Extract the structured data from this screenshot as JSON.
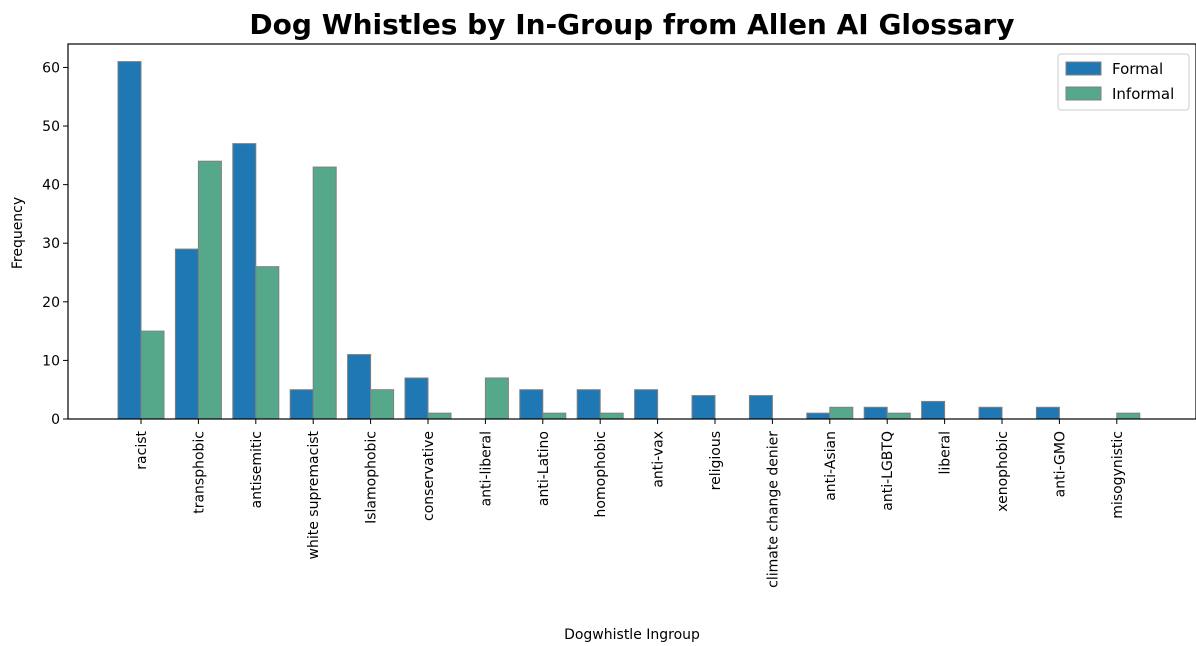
{
  "chart_data": {
    "type": "bar",
    "title": "Dog Whistles by In-Group from Allen AI Glossary",
    "xlabel": "Dogwhistle Ingroup",
    "ylabel": "Frequency",
    "ylim": [
      0,
      64
    ],
    "yticks": [
      0,
      10,
      20,
      30,
      40,
      50,
      60
    ],
    "grid": false,
    "legend_position": "top-right",
    "categories": [
      "racist",
      "transphobic",
      "antisemitic",
      "white supremacist",
      "Islamophobic",
      "conservative",
      "anti-liberal",
      "anti-Latino",
      "homophobic",
      "anti-vax",
      "religious",
      "climate change denier",
      "anti-Asian",
      "anti-LGBTQ",
      "liberal",
      "xenophobic",
      "anti-GMO",
      "misogynistic"
    ],
    "series": [
      {
        "name": "Formal",
        "color": "#1f77b4",
        "values": [
          61,
          29,
          47,
          5,
          11,
          7,
          0,
          5,
          5,
          5,
          4,
          4,
          1,
          2,
          3,
          2,
          2,
          0
        ]
      },
      {
        "name": "Informal",
        "color": "#55a88a",
        "values": [
          15,
          44,
          26,
          43,
          5,
          1,
          7,
          1,
          1,
          0,
          0,
          0,
          2,
          1,
          0,
          0,
          0,
          1
        ]
      }
    ]
  }
}
